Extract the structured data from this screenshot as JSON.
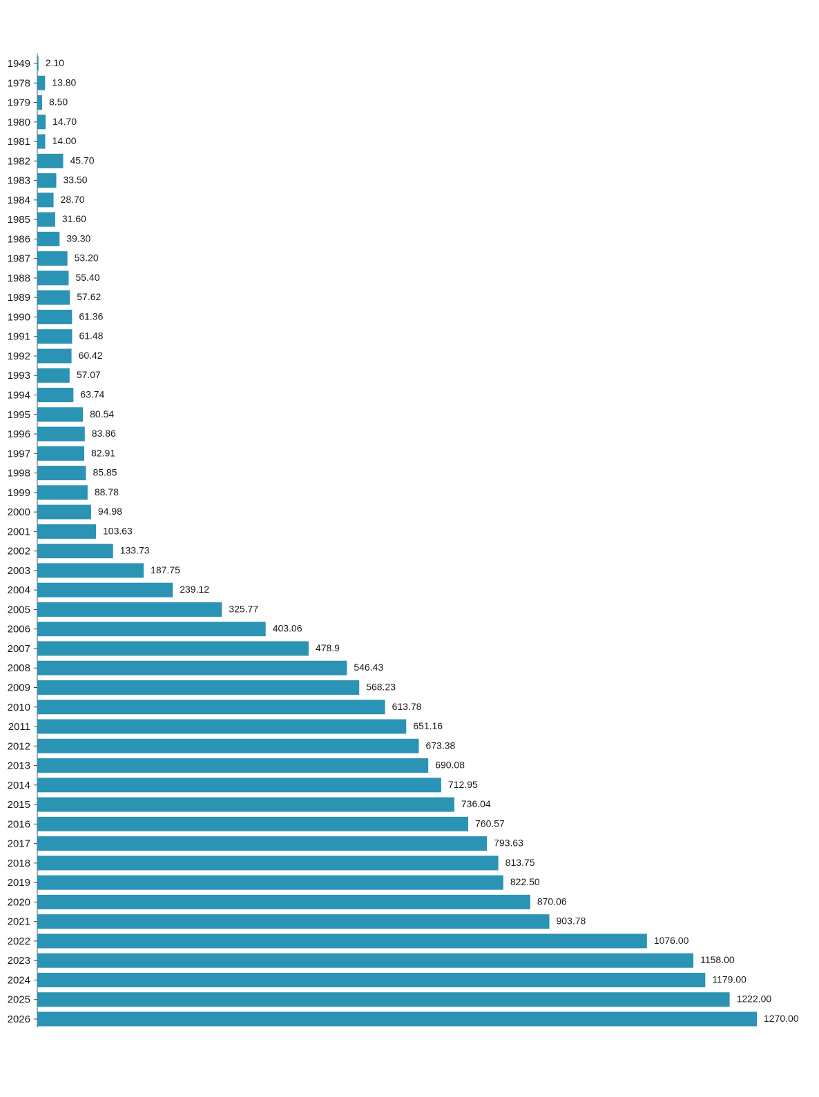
{
  "chart_data": {
    "type": "bar",
    "orientation": "horizontal",
    "title": "",
    "xlabel": "",
    "ylabel": "",
    "grid": false,
    "bar_color": "#2b93b3",
    "xlim": [
      0,
      1270
    ],
    "categories": [
      "1949",
      "1978",
      "1979",
      "1980",
      "1981",
      "1982",
      "1983",
      "1984",
      "1985",
      "1986",
      "1987",
      "1988",
      "1989",
      "1990",
      "1991",
      "1992",
      "1993",
      "1994",
      "1995",
      "1996",
      "1997",
      "1998",
      "1999",
      "2000",
      "2001",
      "2002",
      "2003",
      "2004",
      "2005",
      "2006",
      "2007",
      "2008",
      "2009",
      "2010",
      "2011",
      "2012",
      "2013",
      "2014",
      "2015",
      "2016",
      "2017",
      "2018",
      "2019",
      "2020",
      "2021",
      "2022",
      "2023",
      "2024",
      "2025",
      "2026"
    ],
    "values": [
      2.1,
      13.8,
      8.5,
      14.7,
      14.0,
      45.7,
      33.5,
      28.7,
      31.6,
      39.3,
      53.2,
      55.4,
      57.62,
      61.36,
      61.48,
      60.42,
      57.07,
      63.74,
      80.54,
      83.86,
      82.91,
      85.85,
      88.78,
      94.98,
      103.63,
      133.73,
      187.75,
      239.12,
      325.77,
      403.06,
      478.9,
      546.43,
      568.23,
      613.78,
      651.16,
      673.38,
      690.08,
      712.95,
      736.04,
      760.57,
      793.63,
      813.75,
      822.5,
      870.06,
      903.78,
      1076.0,
      1158.0,
      1179.0,
      1222.0,
      1270.0
    ],
    "value_labels": [
      "2.10",
      "13.80",
      "8.50",
      "14.70",
      "14.00",
      "45.70",
      "33.50",
      "28.70",
      "31.60",
      "39.30",
      "53.20",
      "55.40",
      "57.62",
      "61.36",
      "61.48",
      "60.42",
      "57.07",
      "63.74",
      "80.54",
      "83.86",
      "82.91",
      "85.85",
      "88.78",
      "94.98",
      "103.63",
      "133.73",
      "187.75",
      "239.12",
      "325.77",
      "403.06",
      "478.9",
      "546.43",
      "568.23",
      "613.78",
      "651.16",
      "673.38",
      "690.08",
      "712.95",
      "736.04",
      "760.57",
      "793.63",
      "813.75",
      "822.50",
      "870.06",
      "903.78",
      "1076.00",
      "1158.00",
      "1179.00",
      "1222.00",
      "1270.00"
    ]
  }
}
